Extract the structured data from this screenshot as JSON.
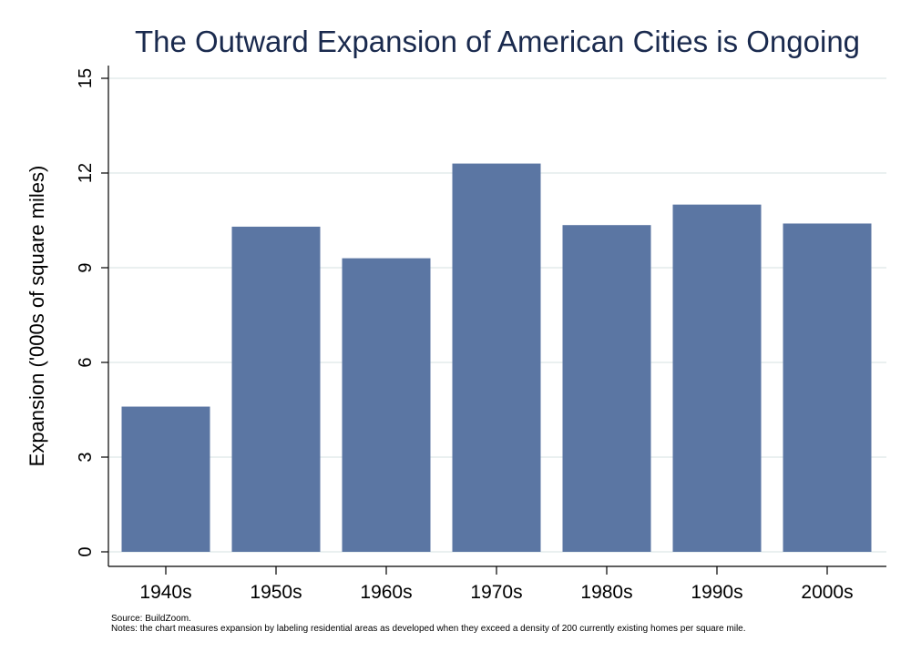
{
  "chart_data": {
    "type": "bar",
    "title": "The Outward Expansion of American Cities is Ongoing",
    "xlabel": "",
    "ylabel": "Expansion ('000s of square miles)",
    "categories": [
      "1940s",
      "1950s",
      "1960s",
      "1970s",
      "1980s",
      "1990s",
      "2000s"
    ],
    "values": [
      4.6,
      10.3,
      9.3,
      12.3,
      10.35,
      11.0,
      10.4
    ],
    "ylim": [
      0,
      15
    ],
    "yticks": [
      0,
      3,
      6,
      9,
      12,
      15
    ],
    "ytick_labels": [
      "0",
      "3",
      "6",
      "9",
      "12",
      "15"
    ],
    "grid": true,
    "bar_color": "#5b76a3",
    "grid_color": "#e4ecec",
    "title_color": "#1a2a4e",
    "notes": [
      "Source: BuildZoom.",
      "Notes: the chart measures expansion by labeling residential areas as developed when they exceed a density of 200 currently existing homes per square mile."
    ]
  }
}
